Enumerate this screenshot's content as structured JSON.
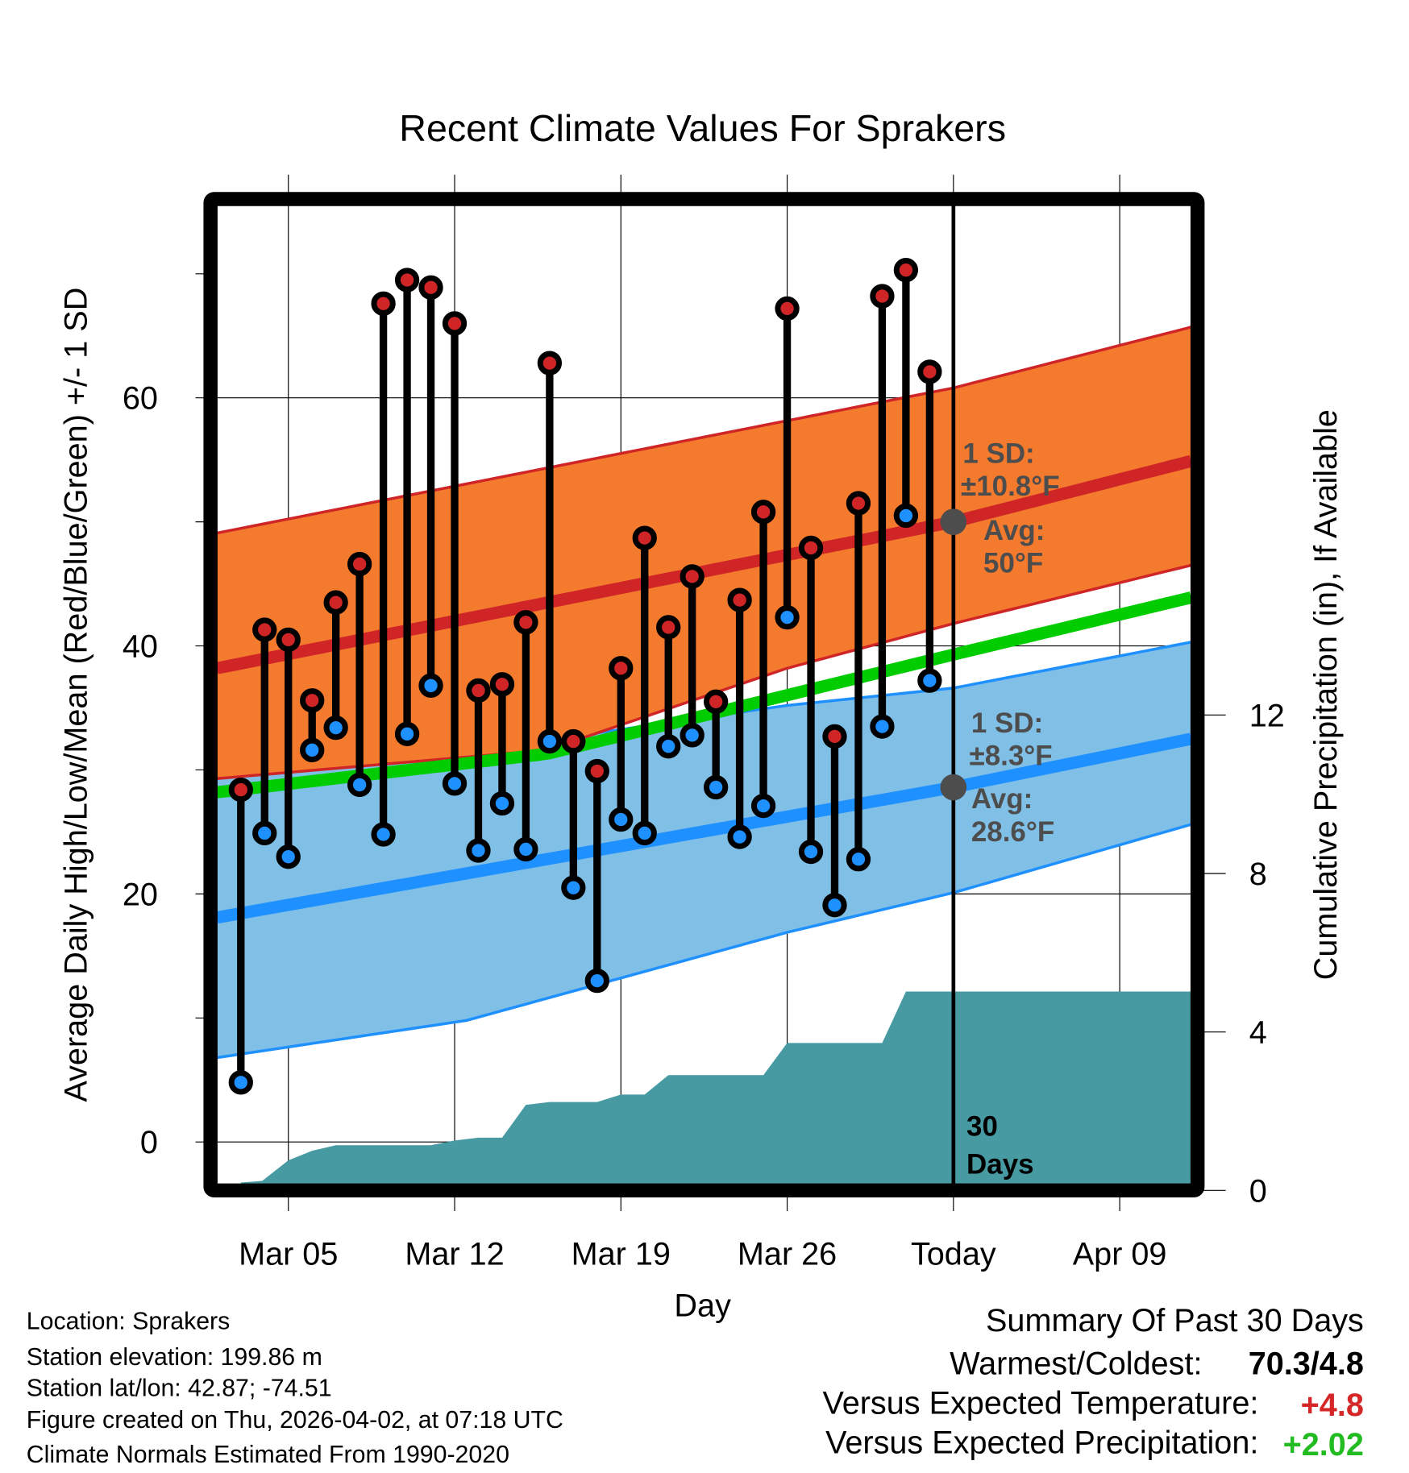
{
  "chart_data": {
    "type": "line",
    "title": "Recent Climate Values For Sprakers",
    "xlabel": "Day",
    "ylabel": "Average Daily High/Low/Mean (Red/Blue/Green) +/- 1 SD",
    "y2label": "Cumulative Precipitation (in), If Available",
    "x_units": "days since Mar 05",
    "xlim": [
      -3,
      38
    ],
    "ylim": [
      -3.3,
      75.5
    ],
    "y2lim": [
      0,
      25
    ],
    "grid": true,
    "x_ticks": [
      {
        "x": 0,
        "label": "Mar 05"
      },
      {
        "x": 7,
        "label": "Mar 12"
      },
      {
        "x": 14,
        "label": "Mar 19"
      },
      {
        "x": 21,
        "label": "Mar 26"
      },
      {
        "x": 28,
        "label": "Today"
      },
      {
        "x": 35,
        "label": "Apr 09"
      }
    ],
    "y_ticks": [
      0,
      20,
      40,
      60
    ],
    "y2_ticks": [
      0,
      4,
      8,
      12
    ],
    "today_x": 28,
    "today_label": "30 Days",
    "daily": {
      "x": [
        -2,
        -1,
        0,
        1,
        2,
        3,
        4,
        5,
        6,
        7,
        8,
        9,
        10,
        11,
        12,
        13,
        14,
        15,
        16,
        17,
        18,
        19,
        20,
        21,
        22,
        23,
        24,
        25,
        26,
        27
      ],
      "high": [
        28.4,
        41.3,
        40.5,
        35.6,
        43.5,
        46.6,
        67.6,
        69.5,
        68.9,
        66.0,
        36.4,
        36.9,
        41.9,
        62.8,
        32.3,
        29.9,
        38.2,
        48.7,
        41.5,
        45.6,
        35.5,
        43.7,
        50.8,
        67.2,
        47.9,
        32.7,
        51.5,
        68.2,
        70.3,
        62.1
      ],
      "low": [
        4.8,
        24.9,
        23.0,
        31.6,
        33.4,
        28.8,
        24.8,
        32.9,
        36.8,
        28.9,
        23.5,
        27.3,
        23.6,
        32.3,
        20.5,
        13.0,
        26.0,
        24.9,
        31.9,
        32.8,
        28.6,
        24.6,
        27.1,
        42.3,
        23.4,
        19.1,
        22.8,
        33.5,
        50.5,
        37.2
      ]
    },
    "normals": {
      "high_mean": [
        [
          -3,
          38.2
        ],
        [
          28,
          50.0
        ],
        [
          38,
          54.9
        ]
      ],
      "high_upper": [
        [
          -3,
          49.1
        ],
        [
          28,
          60.8
        ],
        [
          38,
          65.7
        ]
      ],
      "high_lower": [
        [
          -3,
          29.3
        ],
        [
          10.9,
          31.6
        ],
        [
          21,
          38.2
        ],
        [
          28,
          41.8
        ],
        [
          38,
          46.5
        ]
      ],
      "mean": [
        [
          -3,
          28.2
        ],
        [
          10.9,
          31.3
        ],
        [
          28,
          39.3
        ],
        [
          38,
          43.9
        ]
      ],
      "low_upper": [
        [
          -3,
          29.4
        ],
        [
          10.9,
          32.4
        ],
        [
          21,
          35.2
        ],
        [
          28,
          36.6
        ],
        [
          38,
          40.3
        ]
      ],
      "low_mean": [
        [
          -3,
          18.1
        ],
        [
          28,
          28.6
        ],
        [
          38,
          32.5
        ]
      ],
      "low_lower": [
        [
          -3,
          6.8
        ],
        [
          7.5,
          9.8
        ],
        [
          21,
          16.9
        ],
        [
          28,
          20.1
        ],
        [
          38,
          25.6
        ]
      ]
    },
    "precip": [
      [
        -2,
        0.2
      ],
      [
        -1.1,
        0.24
      ],
      [
        0,
        0.76
      ],
      [
        1,
        1.0
      ],
      [
        2,
        1.14
      ],
      [
        6,
        1.14
      ],
      [
        7,
        1.26
      ],
      [
        8,
        1.33
      ],
      [
        9,
        1.33
      ],
      [
        10,
        2.16
      ],
      [
        11,
        2.23
      ],
      [
        13,
        2.23
      ],
      [
        14,
        2.42
      ],
      [
        15,
        2.42
      ],
      [
        16,
        2.91
      ],
      [
        20,
        2.91
      ],
      [
        21,
        3.72
      ],
      [
        25,
        3.72
      ],
      [
        26,
        5.02
      ],
      [
        38,
        5.02
      ]
    ],
    "annotations": {
      "high_sd_label": "1 SD:",
      "high_sd_value": "±10.8°F",
      "high_avg_label": "Avg:",
      "high_avg_value": "50°F",
      "high_avg": 50,
      "low_sd_label": "1 SD:",
      "low_sd_value": "±8.3°F",
      "low_avg_label": "Avg:",
      "low_avg_value": "28.6°F",
      "low_avg": 28.6,
      "days_num": "30",
      "days_word": "Days"
    },
    "colors": {
      "high_band": "#f47a2e",
      "high_line": "#cf2527",
      "low_band": "#80bfe6",
      "low_line": "#1e90ff",
      "mean_line": "#00cc00",
      "precip": "#4799a2",
      "ann": "#4d4d4d"
    }
  },
  "footer": {
    "location": "Location: Sprakers",
    "elevation": "Station elevation: 199.86 m",
    "latlon": "Station lat/lon: 42.87; -74.51",
    "created": "Figure created on Thu, 2026-04-02, at 07:18 UTC",
    "normals": "Climate Normals Estimated From 1990-2020"
  },
  "summary": {
    "title": "Summary Of Past 30 Days",
    "warm_cold_label": "Warmest/Coldest:",
    "warm_cold_value": "70.3/4.8",
    "temp_label": "Versus Expected Temperature:",
    "temp_value": "+4.8",
    "precip_label": "Versus Expected Precipitation:",
    "precip_value": "+2.02",
    "temp_color": "#d62728",
    "precip_color": "#22bb22"
  }
}
